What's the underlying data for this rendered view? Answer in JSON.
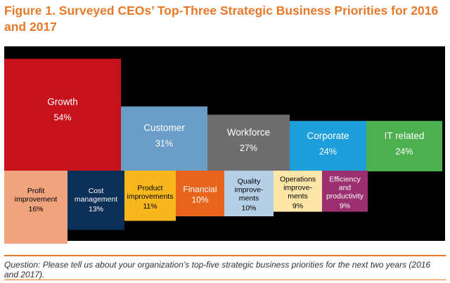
{
  "title": "Figure 1. Surveyed CEOs’ Top-Three Strategic Business Priorities for 2016 and 2017",
  "footnote": "Question: Please tell us about your organization’s top-five strategic business priorities for the next two years (2016 and 2017).",
  "colors": {
    "title": "#e8782a",
    "background": "#000000",
    "rule": "#e8782a"
  },
  "chart_data": {
    "type": "bar",
    "unit": "%",
    "ylim": [
      0,
      60
    ],
    "grid": false,
    "legend": "none",
    "primary": [
      {
        "label": "Growth",
        "value": 54,
        "color": "#c8121b",
        "text_color": "#ffffff"
      },
      {
        "label": "Customer",
        "value": 31,
        "color": "#6b9dc9",
        "text_color": "#ffffff"
      },
      {
        "label": "Workforce",
        "value": 27,
        "color": "#6e6e6e",
        "text_color": "#ffffff"
      },
      {
        "label": "Corporate",
        "value": 24,
        "color": "#1e9fdb",
        "text_color": "#ffffff"
      },
      {
        "label": "IT related",
        "value": 24,
        "color": "#4caf50",
        "text_color": "#ffffff"
      }
    ],
    "secondary": [
      {
        "label": "Profit\nimprovement",
        "value": 16,
        "color": "#f0a47e",
        "text_color": "#000000"
      },
      {
        "label": "Cost\nmanagement",
        "value": 13,
        "color": "#0c2f57",
        "text_color": "#ffffff"
      },
      {
        "label": "Product\nimprovements",
        "value": 11,
        "color": "#f7b71d",
        "text_color": "#000000"
      },
      {
        "label": "Financial",
        "value": 10,
        "color": "#e8641c",
        "text_color": "#ffffff"
      },
      {
        "label": "Quality\nimprove-\nments",
        "value": 10,
        "color": "#b5cfe6",
        "text_color": "#000000"
      },
      {
        "label": "Operations\nimprove-\nments",
        "value": 9,
        "color": "#fde6a8",
        "text_color": "#000000"
      },
      {
        "label": "Efficiency\nand\nproductivity",
        "value": 9,
        "color": "#9b2f6f",
        "text_color": "#ffffff"
      }
    ]
  }
}
